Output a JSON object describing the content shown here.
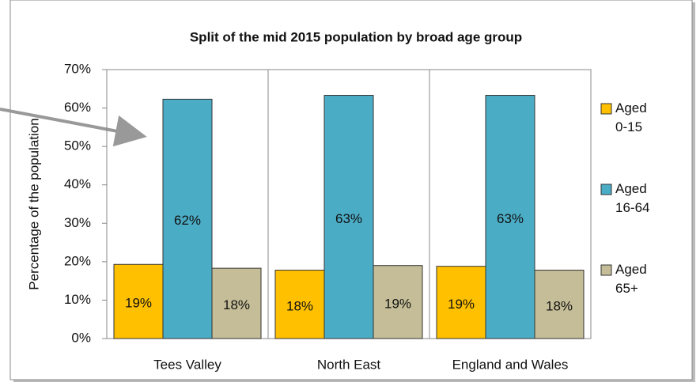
{
  "chart_data": {
    "type": "bar",
    "title": "Split of the mid 2015 population by broad age group",
    "ylabel": "Percentage of the population",
    "categories": [
      "Tees Valley",
      "North East",
      "England and Wales"
    ],
    "series": [
      {
        "name": "Aged 0-15",
        "color": "#ffc000",
        "values": [
          19.3,
          17.8,
          18.8
        ],
        "value_labels": [
          "19%",
          "18%",
          "19%"
        ]
      },
      {
        "name": "Aged 16-64",
        "color": "#4bacc6",
        "values": [
          62.3,
          63.3,
          63.3
        ],
        "value_labels": [
          "62%",
          "63%",
          "63%"
        ]
      },
      {
        "name": "Aged 65+",
        "color": "#c4bd97",
        "values": [
          18.3,
          19.0,
          17.8
        ],
        "value_labels": [
          "18%",
          "19%",
          "18%"
        ]
      }
    ],
    "ylim": [
      0,
      70
    ],
    "yticks": [
      {
        "value": 0,
        "label": "0%"
      },
      {
        "value": 10,
        "label": "10%"
      },
      {
        "value": 20,
        "label": "20%"
      },
      {
        "value": 30,
        "label": "30%"
      },
      {
        "value": 40,
        "label": "40%"
      },
      {
        "value": 50,
        "label": "50%"
      },
      {
        "value": 60,
        "label": "60%"
      },
      {
        "value": 70,
        "label": "70%"
      }
    ],
    "legend": "right"
  }
}
